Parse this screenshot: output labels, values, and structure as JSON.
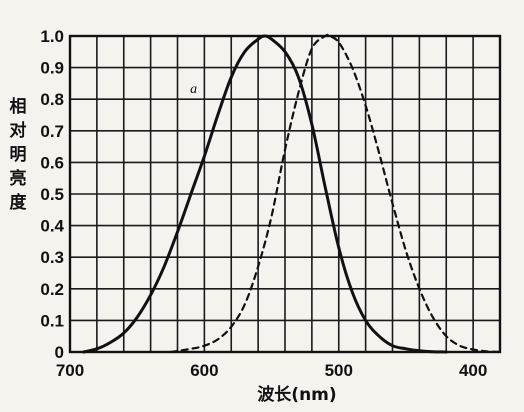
{
  "chart_data": {
    "type": "line",
    "title": "",
    "xlabel": "波长(nm)",
    "ylabel": "相对明亮度",
    "x_reversed": true,
    "xlim": [
      700,
      380
    ],
    "ylim": [
      0,
      1.0
    ],
    "x_ticks": [
      {
        "value": 700,
        "label": "700"
      },
      {
        "value": 600,
        "label": "600"
      },
      {
        "value": 500,
        "label": "500"
      },
      {
        "value": 400,
        "label": "400"
      }
    ],
    "y_ticks": [
      {
        "value": 0,
        "label": "0"
      },
      {
        "value": 0.1,
        "label": "0.1"
      },
      {
        "value": 0.2,
        "label": "0.2"
      },
      {
        "value": 0.3,
        "label": "0.3"
      },
      {
        "value": 0.4,
        "label": "0.4"
      },
      {
        "value": 0.5,
        "label": "0.5"
      },
      {
        "value": 0.6,
        "label": "0.6"
      },
      {
        "value": 0.7,
        "label": "0.7"
      },
      {
        "value": 0.8,
        "label": "0.8"
      },
      {
        "value": 0.9,
        "label": "0.9"
      },
      {
        "value": 1.0,
        "label": "1.0"
      }
    ],
    "grid": true,
    "annotations": [
      {
        "text": "a",
        "x": 608,
        "y": 0.82
      }
    ],
    "series": [
      {
        "style": "solid",
        "color": "#111111",
        "x": [
          690,
          680,
          670,
          660,
          650,
          640,
          630,
          620,
          610,
          600,
          590,
          580,
          570,
          560,
          555,
          550,
          540,
          530,
          520,
          510,
          500,
          490,
          480,
          470,
          460,
          450,
          440,
          430,
          420
        ],
        "y": [
          0.0,
          0.01,
          0.03,
          0.06,
          0.11,
          0.18,
          0.27,
          0.38,
          0.5,
          0.62,
          0.75,
          0.87,
          0.95,
          0.99,
          1.0,
          0.99,
          0.95,
          0.87,
          0.72,
          0.52,
          0.33,
          0.19,
          0.1,
          0.05,
          0.02,
          0.01,
          0.004,
          0.001,
          0.0
        ]
      },
      {
        "style": "dashed",
        "color": "#111111",
        "x": [
          625,
          610,
          600,
          590,
          580,
          570,
          560,
          550,
          540,
          530,
          520,
          510,
          507,
          500,
          490,
          480,
          470,
          460,
          450,
          440,
          430,
          420,
          410,
          400,
          390,
          380
        ],
        "y": [
          0.0,
          0.01,
          0.02,
          0.04,
          0.08,
          0.15,
          0.27,
          0.43,
          0.64,
          0.82,
          0.96,
          1.0,
          1.0,
          0.98,
          0.9,
          0.78,
          0.63,
          0.47,
          0.32,
          0.2,
          0.11,
          0.05,
          0.02,
          0.008,
          0.002,
          0.0
        ]
      }
    ]
  }
}
